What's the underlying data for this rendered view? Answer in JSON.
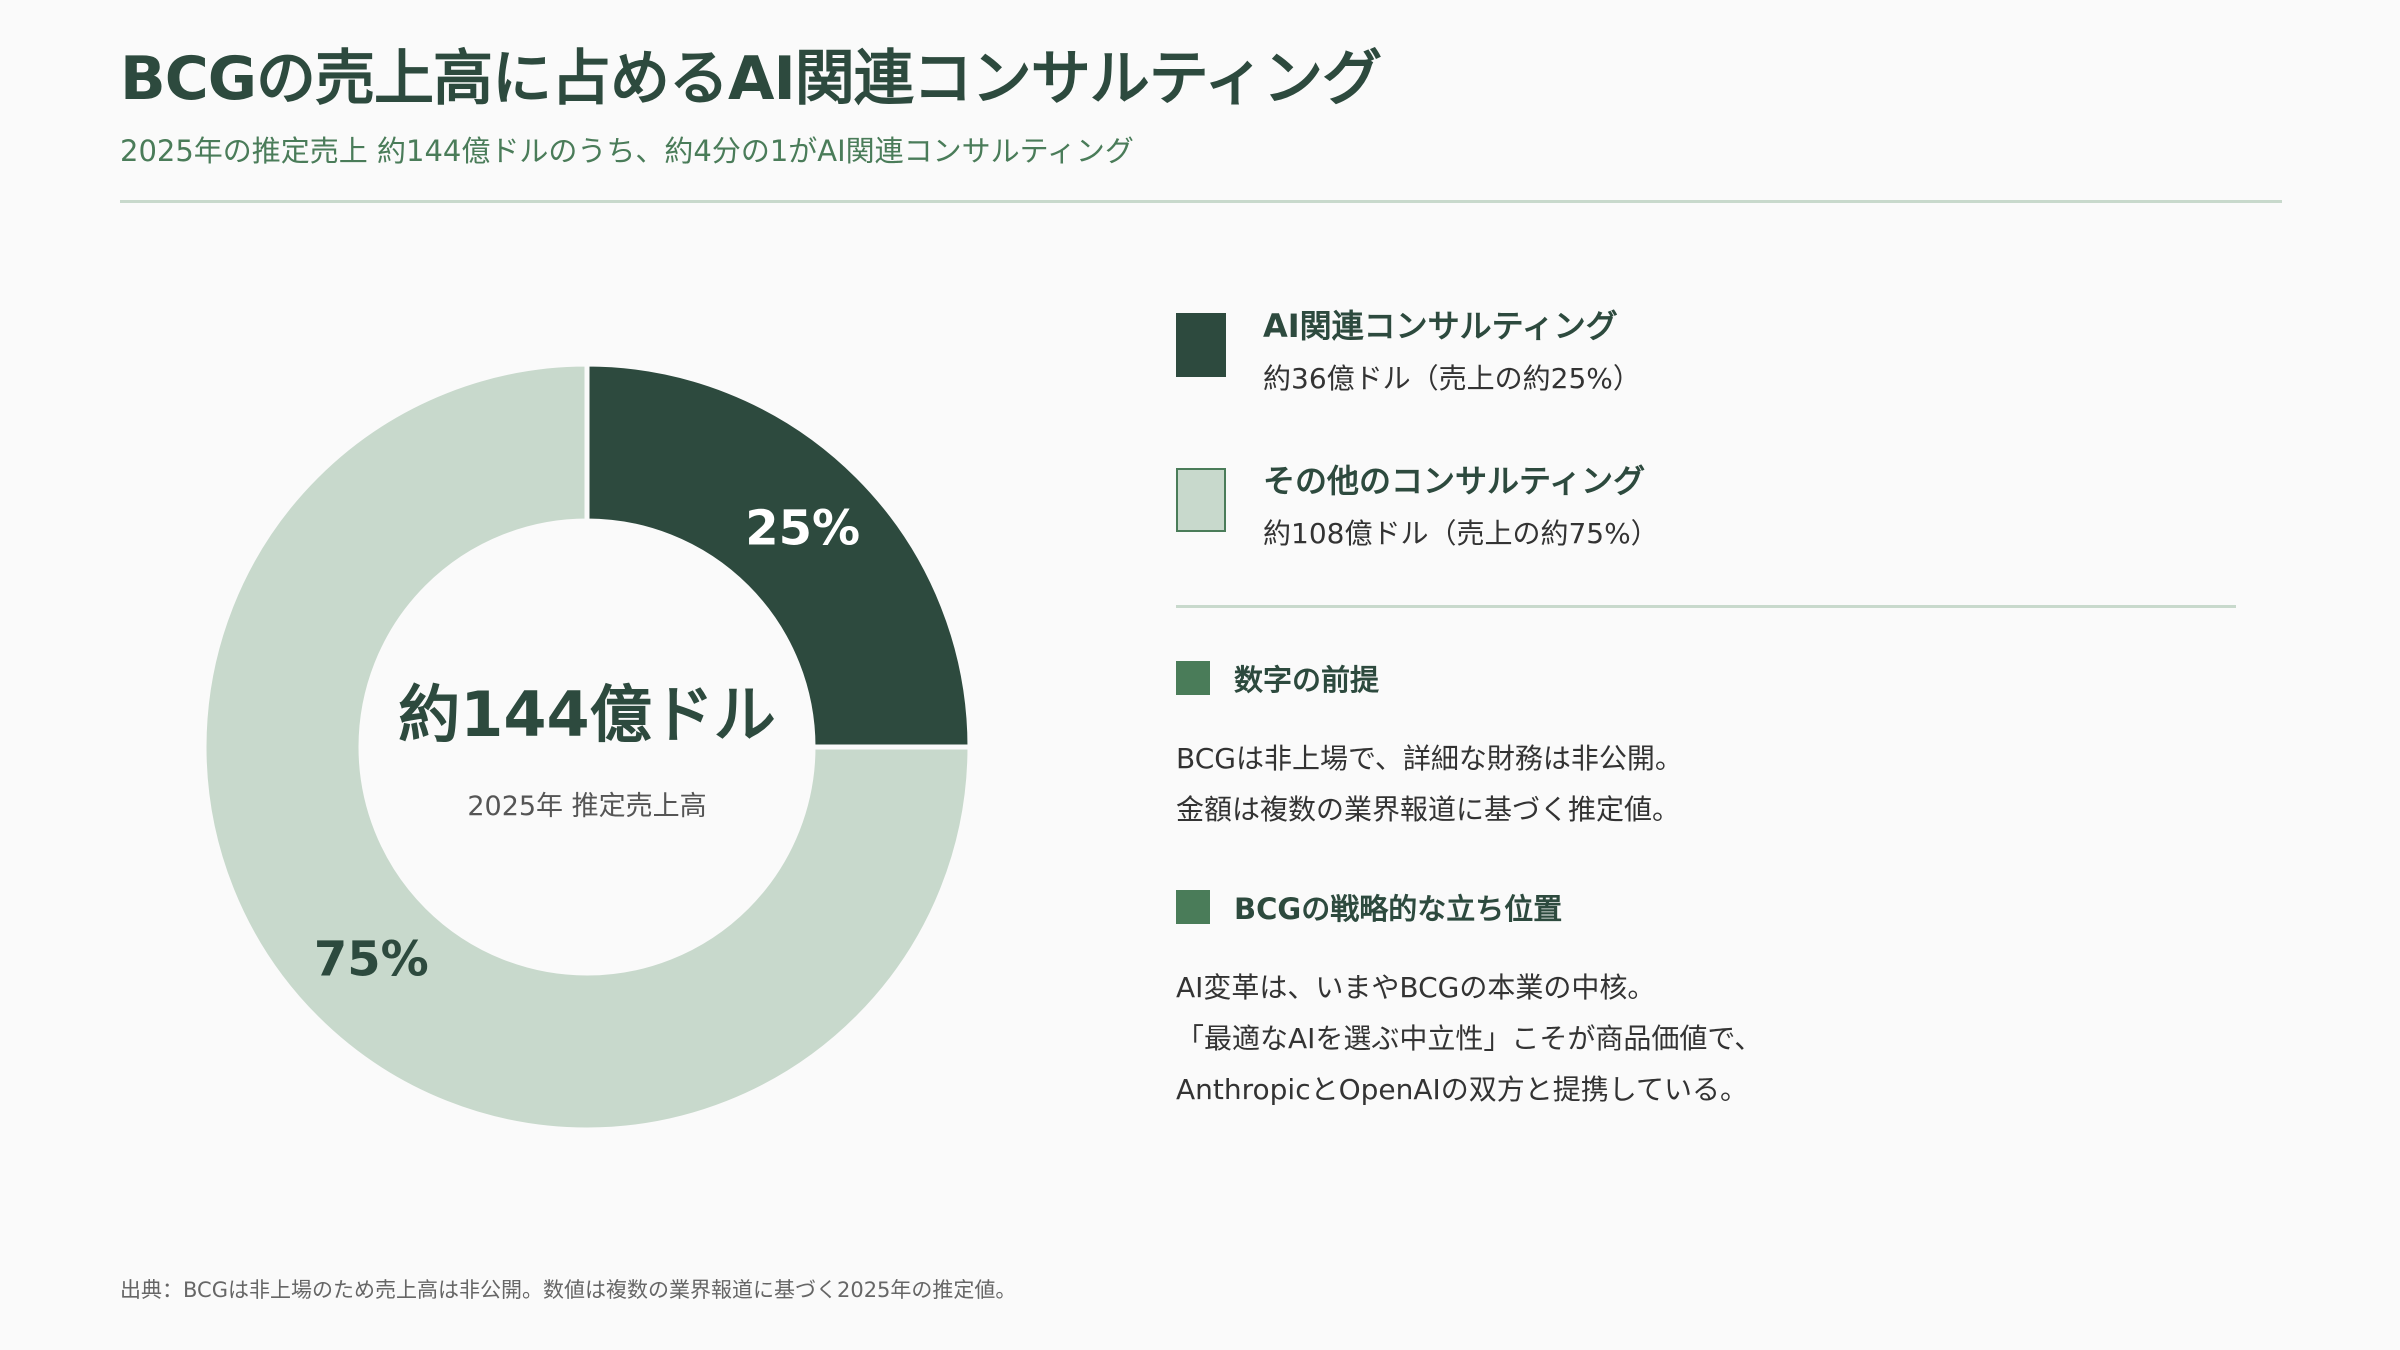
{
  "header": {
    "title": "BCGの売上高に占めるAI関連コンサルティング",
    "subtitle": "2025年の推定売上 約144億ドルのうち、約4分の1がAI関連コンサルティング"
  },
  "chart_data": {
    "type": "pie",
    "variant": "donut",
    "center_value": "約144億ドル",
    "center_caption": "2025年 推定売上高",
    "series": [
      {
        "label": "AI関連コンサルティング",
        "value": 25,
        "amount_label": "約36億ドル（売上の約25%）",
        "percent_label": "25%",
        "color": "#2d4a3e"
      },
      {
        "label": "その他のコンサルティング",
        "value": 75,
        "amount_label": "約108億ドル（売上の約75%）",
        "percent_label": "75%",
        "color": "#c8d9cc"
      }
    ],
    "legend_position": "right"
  },
  "notes": {
    "premise": {
      "title": "数字の前提",
      "lines": [
        "BCGは非上場で、詳細な財務は非公開。",
        "金額は複数の業界報道に基づく推定値。"
      ]
    },
    "position": {
      "title": "BCGの戦略的な立ち位置",
      "lines": [
        "AI変革は、いまやBCGの本業の中核。",
        "「最適なAIを選ぶ中立性」こそが商品価値で、",
        "AnthropicとOpenAIの双方と提携している。"
      ]
    }
  },
  "footer": {
    "source": "出典：BCGは非上場のため売上高は非公開。数値は複数の業界報道に基づく2025年の推定値。"
  },
  "colors": {
    "dark_green": "#2d4a3e",
    "light_green": "#c8d9cc",
    "accent_green": "#4a7c59"
  }
}
